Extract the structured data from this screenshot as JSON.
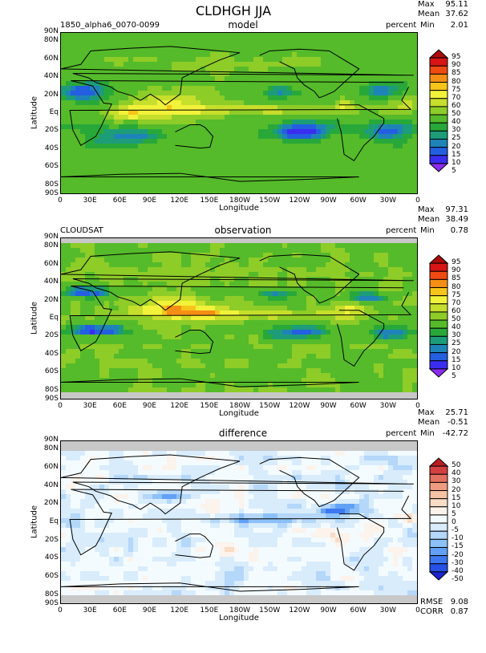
{
  "figure": {
    "title": "CLDHGH JJA"
  },
  "colors": {
    "seq_palette": [
      "#8C2BF0",
      "#3A2DF0",
      "#235FE0",
      "#1E84B8",
      "#1D9C7A",
      "#29A83A",
      "#55BB2A",
      "#8ECC28",
      "#C6DE2C",
      "#F2F23A",
      "#F7C41A",
      "#F58E14",
      "#EE4A12",
      "#D81414",
      "#AD0A0A"
    ],
    "diff_palette": [
      "#1C24CF",
      "#2650E6",
      "#3E78F0",
      "#62A0F5",
      "#8CC0F8",
      "#B4D7FA",
      "#D8ECFC",
      "#F4FBFF",
      "#FBF3EC",
      "#F8DCC6",
      "#F5C2A4",
      "#EE9C7F",
      "#E47060",
      "#D44040",
      "#B81E22"
    ]
  },
  "chart_data": [
    {
      "type": "heatmap",
      "panel": "top",
      "title": "model",
      "left_label": "1850_alpha6_0070-0099",
      "units": "percent",
      "stats": {
        "max_label": "Max",
        "max": "95.11",
        "mean_label": "Mean",
        "mean": "37.62",
        "min_label": "Min",
        "min": "2.01"
      },
      "xlabel": "Longitude",
      "ylabel": "Latitude",
      "x_ticks": [
        "0",
        "30E",
        "60E",
        "90E",
        "120E",
        "150E",
        "180W",
        "150W",
        "120W",
        "90W",
        "60W",
        "30W",
        "0"
      ],
      "y_ticks": [
        "90N",
        "80N",
        "60N",
        "40N",
        "20N",
        "Eq",
        "20S",
        "40S",
        "60S",
        "80S",
        "90S"
      ],
      "colorbar_labels": [
        "95",
        "90",
        "85",
        "80",
        "75",
        "70",
        "60",
        "50",
        "40",
        "30",
        "25",
        "20",
        "15",
        "10",
        "5"
      ],
      "xlim": [
        0,
        360
      ],
      "ylim": [
        -90,
        90
      ]
    },
    {
      "type": "heatmap",
      "panel": "middle",
      "title": "observation",
      "left_label": "CLOUDSAT",
      "units": "percent",
      "stats": {
        "max_label": "Max",
        "max": "97.31",
        "mean_label": "Mean",
        "mean": "38.49",
        "min_label": "Min",
        "min": "0.78"
      },
      "xlabel": "Longitude",
      "ylabel": "Latitude",
      "x_ticks": [
        "0",
        "30E",
        "60E",
        "90E",
        "120E",
        "150E",
        "180W",
        "150W",
        "120W",
        "90W",
        "60W",
        "30W",
        "0"
      ],
      "y_ticks": [
        "90N",
        "80N",
        "60N",
        "40N",
        "20N",
        "Eq",
        "20S",
        "40S",
        "60S",
        "80S",
        "90S"
      ],
      "colorbar_labels": [
        "95",
        "90",
        "85",
        "80",
        "75",
        "70",
        "60",
        "50",
        "40",
        "30",
        "25",
        "20",
        "15",
        "10",
        "5"
      ],
      "xlim": [
        0,
        360
      ],
      "ylim": [
        -90,
        90
      ]
    },
    {
      "type": "heatmap",
      "panel": "bottom",
      "title": "difference",
      "left_label": "",
      "units": "percent",
      "stats": {
        "max_label": "Max",
        "max": "25.71",
        "mean_label": "Mean",
        "mean": "-0.51",
        "min_label": "Min",
        "min": "-42.72",
        "rmse_label": "RMSE",
        "rmse": "9.08",
        "corr_label": "CORR",
        "corr": "0.87"
      },
      "xlabel": "Longitude",
      "ylabel": "Latitude",
      "x_ticks": [
        "0",
        "30E",
        "60E",
        "90E",
        "120E",
        "150E",
        "180W",
        "150W",
        "120W",
        "90W",
        "60W",
        "30W",
        "0"
      ],
      "y_ticks": [
        "90N",
        "80N",
        "60N",
        "40N",
        "20N",
        "Eq",
        "20S",
        "40S",
        "60S",
        "80S",
        "90S"
      ],
      "colorbar_labels": [
        "50",
        "40",
        "30",
        "20",
        "15",
        "10",
        "5",
        "0",
        "-5",
        "-10",
        "-15",
        "-20",
        "-30",
        "-40",
        "-50"
      ],
      "xlim": [
        0,
        360
      ],
      "ylim": [
        -90,
        90
      ]
    }
  ]
}
